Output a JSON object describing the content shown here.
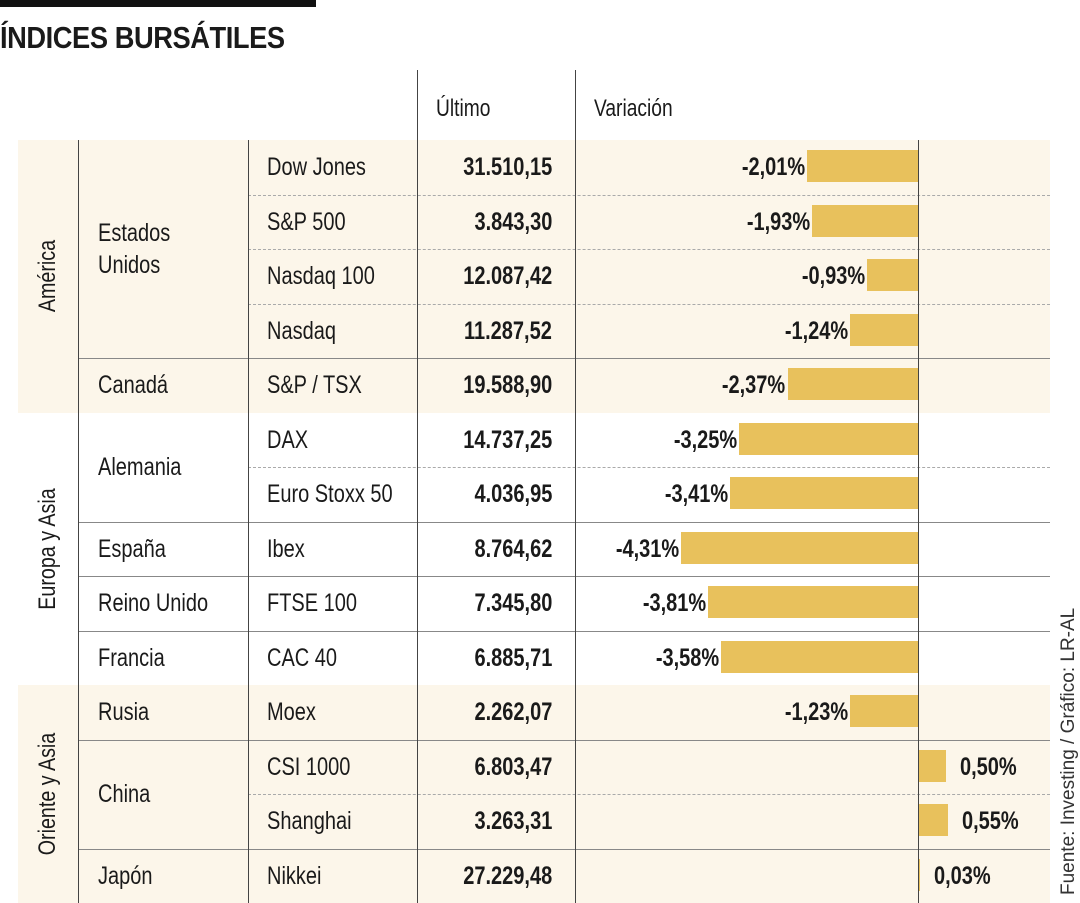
{
  "title": "ÍNDICES BURSÁTILES",
  "headers": {
    "last": "Último",
    "variation": "Variación"
  },
  "source": "Fuente: Investing / Gráfico: LR-AL",
  "colors": {
    "bar": "#e8c15c",
    "band": "#fcf6ea"
  },
  "regions": [
    {
      "label": "América",
      "rows": 5
    },
    {
      "label": "Europa y Asia",
      "rows": 5
    },
    {
      "label": "Oriente y Asia",
      "rows": 4
    }
  ],
  "countries": [
    {
      "label": "Estados Unidos",
      "rows": 4
    },
    {
      "label": "Canadá",
      "rows": 1
    },
    {
      "label": "Alemania",
      "rows": 2
    },
    {
      "label": "España",
      "rows": 1
    },
    {
      "label": "Reino Unido",
      "rows": 1
    },
    {
      "label": "Francia",
      "rows": 1
    },
    {
      "label": "Rusia",
      "rows": 1
    },
    {
      "label": "China",
      "rows": 2
    },
    {
      "label": "Japón",
      "rows": 1
    }
  ],
  "chart_data": {
    "type": "bar",
    "orientation": "horizontal",
    "categories": [
      "Dow Jones",
      "S&P 500",
      "Nasdaq 100",
      "Nasdaq",
      "S&P / TSX",
      "DAX",
      "Euro Stoxx 50",
      "Ibex",
      "FTSE 100",
      "CAC 40",
      "Moex",
      "CSI 1000",
      "Shanghai",
      "Nikkei"
    ],
    "last": [
      "31.510,15",
      "3.843,30",
      "12.087,42",
      "11.287,52",
      "19.588,90",
      "14.737,25",
      "4.036,95",
      "8.764,62",
      "7.345,80",
      "6.885,71",
      "2.262,07",
      "6.803,47",
      "3.263,31",
      "27.229,48"
    ],
    "values": [
      -2.01,
      -1.93,
      -0.93,
      -1.24,
      -2.37,
      -3.25,
      -3.41,
      -4.31,
      -3.81,
      -3.58,
      -1.23,
      0.5,
      0.55,
      0.03
    ],
    "labels": [
      "-2,01%",
      "-1,93%",
      "-0,93%",
      "-1,24%",
      "-2,37%",
      "-3,25%",
      "-3,41%",
      "-4,31%",
      "-3,81%",
      "-3,58%",
      "-1,23%",
      "0,50%",
      "0,55%",
      "0,03%"
    ]
  }
}
